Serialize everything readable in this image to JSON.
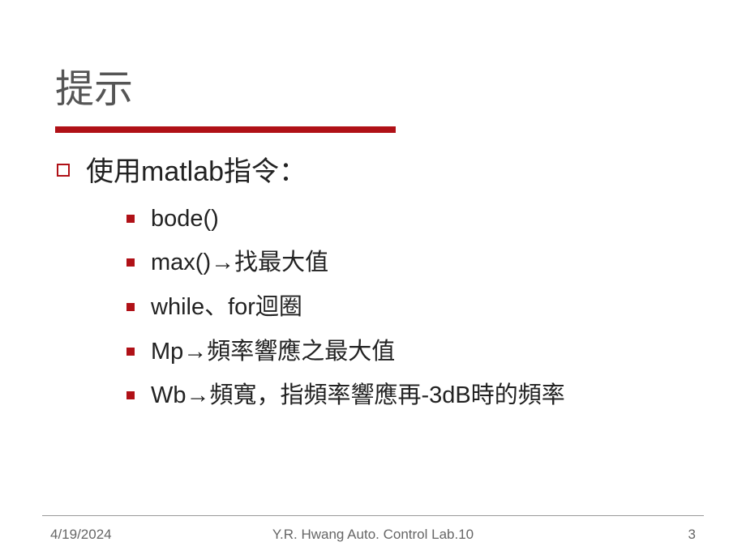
{
  "title": "提示",
  "colors": {
    "accent": "#b01117",
    "text": "#222222",
    "title_text": "#555555",
    "footer_text": "#666666",
    "background": "#ffffff",
    "divider": "#999999"
  },
  "typography": {
    "title_fontsize": 48,
    "level1_fontsize": 34,
    "level2_fontsize": 29,
    "footer_fontsize": 17
  },
  "content": {
    "level1": {
      "text": "使用matlab指令："
    },
    "level2": [
      {
        "text": "bode()"
      },
      {
        "text": "max()→找最大值"
      },
      {
        "text": "while、for迴圈"
      },
      {
        "text": "Mp→頻率響應之最大值"
      },
      {
        "text": "Wb→頻寬，指頻率響應再-3dB時的頻率"
      }
    ]
  },
  "footer": {
    "date": "4/19/2024",
    "center": "Y.R. Hwang   Auto. Control Lab.10",
    "page": "3"
  },
  "layout": {
    "slide_width": 920,
    "slide_height": 690,
    "title_underline_width": 420,
    "title_underline_height": 8
  }
}
